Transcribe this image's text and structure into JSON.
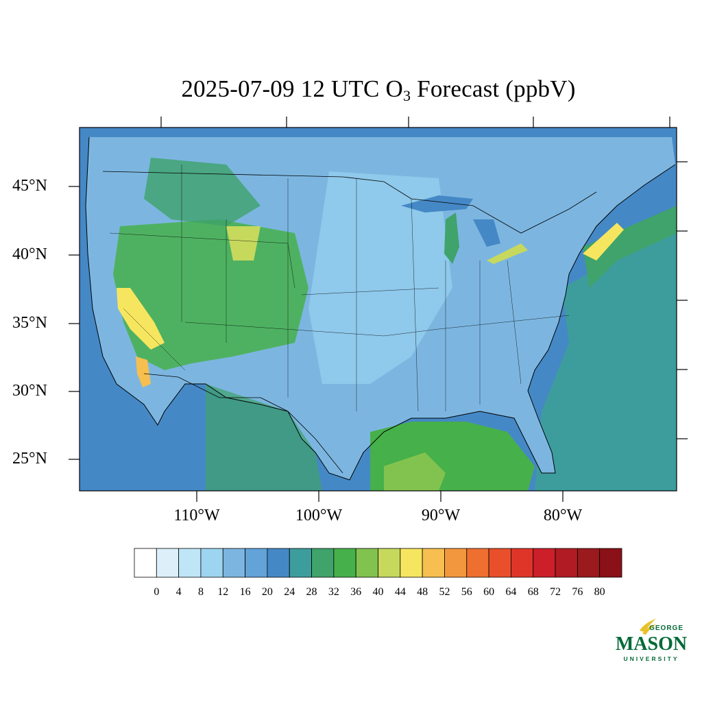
{
  "title": {
    "prefix": "2025-07-09 12 UTC O",
    "subscript": "3",
    "suffix": " Forecast (ppbV)"
  },
  "lat_labels": [
    "45°N",
    "40°N",
    "35°N",
    "30°N",
    "25°N"
  ],
  "lon_labels": [
    "110°W",
    "100°W",
    "90°W",
    "80°W"
  ],
  "colorbar": {
    "tick_labels": [
      "0",
      "4",
      "8",
      "12",
      "16",
      "20",
      "24",
      "28",
      "32",
      "36",
      "40",
      "44",
      "48",
      "52",
      "56",
      "60",
      "64",
      "68",
      "72",
      "76",
      "80"
    ],
    "colors": [
      "#ffffff",
      "#ddf0fa",
      "#bfe6f7",
      "#9dd5f1",
      "#7cb6e0",
      "#62a3d8",
      "#4588c6",
      "#3d9d9d",
      "#3fa36b",
      "#46b04a",
      "#82c34f",
      "#c6d95d",
      "#f6e65f",
      "#f6bf4f",
      "#f3973e",
      "#ee6f2f",
      "#e84f2a",
      "#df3529",
      "#cc1f2a",
      "#b01b24",
      "#9a1a1e",
      "#8a1117"
    ]
  },
  "logo": {
    "line1": "GEORGE",
    "line2": "MASON",
    "line3": "UNIVERSITY"
  }
}
